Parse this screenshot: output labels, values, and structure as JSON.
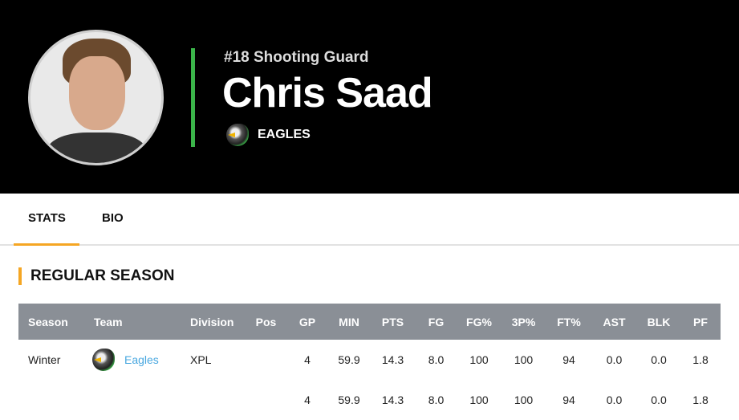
{
  "player": {
    "position_line": "#18 Shooting Guard",
    "name": "Chris Saad",
    "team": "EAGLES",
    "accent": "#3bb54a"
  },
  "tabs": [
    {
      "label": "STATS",
      "active": true
    },
    {
      "label": "BIO",
      "active": false
    }
  ],
  "section_title": "REGULAR SEASON",
  "table": {
    "headers": [
      "Season",
      "Team",
      "Division",
      "Pos",
      "GP",
      "MIN",
      "PTS",
      "FG",
      "FG%",
      "3P%",
      "FT%",
      "AST",
      "BLK",
      "PF"
    ],
    "rows": [
      [
        "Winter",
        "Eagles",
        "XPL",
        "",
        "4",
        "59.9",
        "14.3",
        "8.0",
        "100",
        "100",
        "94",
        "0.0",
        "0.0",
        "1.8"
      ],
      [
        "",
        "",
        "",
        "",
        "4",
        "59.9",
        "14.3",
        "8.0",
        "100",
        "100",
        "94",
        "0.0",
        "0.0",
        "1.8"
      ]
    ]
  },
  "colors": {
    "tab_accent": "#f5a623",
    "header_bg": "#8a8f96",
    "link": "#4aa8e0"
  }
}
